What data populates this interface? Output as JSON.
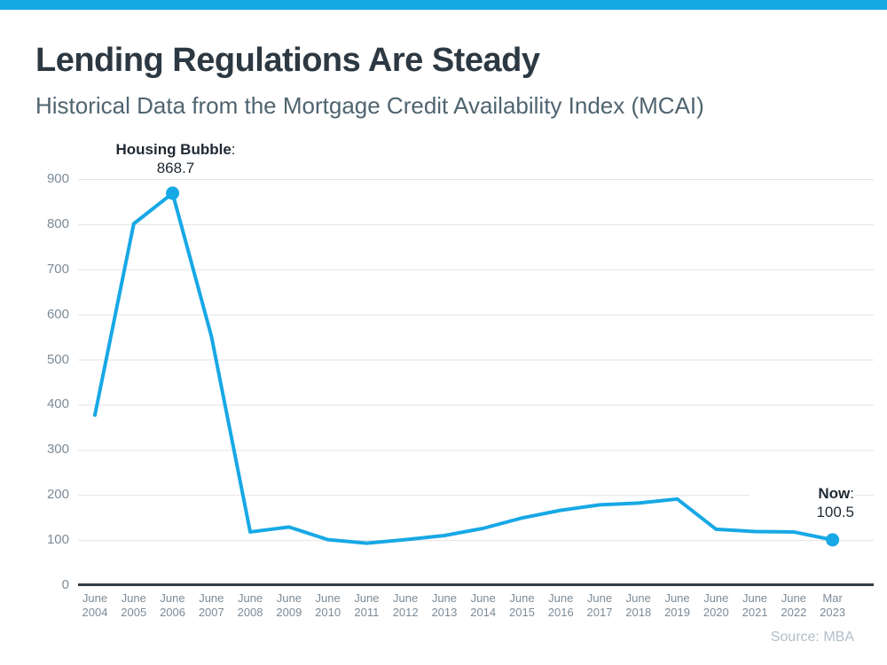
{
  "page": {
    "title": "Lending Regulations Are Steady",
    "subtitle": "Historical Data from the Mortgage Credit Availability Index (MCAI)",
    "source_note": "Source: MBA",
    "accent_color": "#17A8E6"
  },
  "chart_data": {
    "type": "line",
    "title": "Lending Regulations Are Steady",
    "subtitle": "Historical Data from the Mortgage Credit Availability Index (MCAI)",
    "source": "Source: MBA",
    "categories": [
      [
        "June",
        "2004"
      ],
      [
        "June",
        "2005"
      ],
      [
        "June",
        "2006"
      ],
      [
        "June",
        "2007"
      ],
      [
        "June",
        "2008"
      ],
      [
        "June",
        "2009"
      ],
      [
        "June",
        "2010"
      ],
      [
        "June",
        "2011"
      ],
      [
        "June",
        "2012"
      ],
      [
        "June",
        "2013"
      ],
      [
        "June",
        "2014"
      ],
      [
        "June",
        "2015"
      ],
      [
        "June",
        "2016"
      ],
      [
        "June",
        "2017"
      ],
      [
        "June",
        "2018"
      ],
      [
        "June",
        "2019"
      ],
      [
        "June",
        "2020"
      ],
      [
        "June",
        "2021"
      ],
      [
        "June",
        "2022"
      ],
      [
        "Mar",
        "2023"
      ]
    ],
    "values": [
      377,
      801,
      868.7,
      552,
      118,
      129,
      101,
      93,
      101,
      110,
      126,
      149,
      166,
      178,
      182,
      191,
      124,
      119,
      118,
      100.5
    ],
    "ylim": [
      0,
      900
    ],
    "yticks": [
      0,
      100,
      200,
      300,
      400,
      500,
      600,
      700,
      800,
      900
    ],
    "grid": true,
    "legend": "none",
    "line_color": "#17A8E6",
    "marker_color": "#17A8E6",
    "gridline_color": "#E3E3E3",
    "axis_color": "#343D45",
    "annotations": [
      {
        "point_index": 2,
        "label": "Housing Bubble",
        "colon": ":",
        "value": "868.7"
      },
      {
        "point_index": 19,
        "label": "Now",
        "colon": ":",
        "value": "100.5"
      }
    ]
  }
}
